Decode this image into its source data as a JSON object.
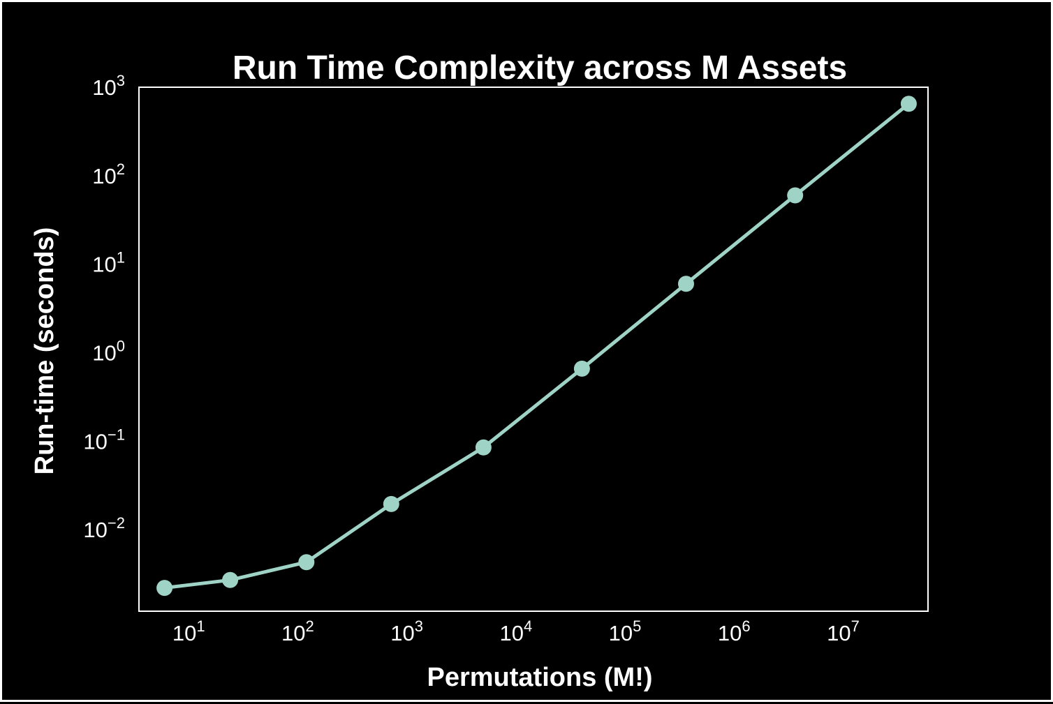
{
  "chart_data": {
    "type": "line",
    "title": "Run Time Complexity across M Assets",
    "xlabel": "Permutations (M!)",
    "ylabel": "Run-time (seconds)",
    "xscale": "log",
    "yscale": "log",
    "xlim": [
      3.5,
      60000000
    ],
    "ylim": [
      0.0012,
      1000
    ],
    "x_ticks": [
      {
        "value": 10,
        "base": "10",
        "exp": "1"
      },
      {
        "value": 100,
        "base": "10",
        "exp": "2"
      },
      {
        "value": 1000,
        "base": "10",
        "exp": "3"
      },
      {
        "value": 10000,
        "base": "10",
        "exp": "4"
      },
      {
        "value": 100000,
        "base": "10",
        "exp": "5"
      },
      {
        "value": 1000000,
        "base": "10",
        "exp": "6"
      },
      {
        "value": 10000000,
        "base": "10",
        "exp": "7"
      }
    ],
    "y_ticks": [
      {
        "value": 0.01,
        "base": "10",
        "exp": "−2"
      },
      {
        "value": 0.1,
        "base": "10",
        "exp": "−1"
      },
      {
        "value": 1,
        "base": "10",
        "exp": "0"
      },
      {
        "value": 10,
        "base": "10",
        "exp": "1"
      },
      {
        "value": 100,
        "base": "10",
        "exp": "2"
      },
      {
        "value": 1000,
        "base": "10",
        "exp": "3"
      }
    ],
    "grid": false,
    "series": [
      {
        "color": "#9ed3c6",
        "x": [
          6,
          24,
          120,
          720,
          5040,
          40320,
          362880,
          3628800,
          39916800
        ],
        "y": [
          0.0022,
          0.0027,
          0.0043,
          0.0195,
          0.085,
          0.66,
          6.0,
          60,
          650
        ]
      }
    ],
    "colors": {
      "background": "#000000",
      "frame": "#ffffff",
      "text": "#ffffff",
      "series": "#9ed3c6"
    }
  }
}
